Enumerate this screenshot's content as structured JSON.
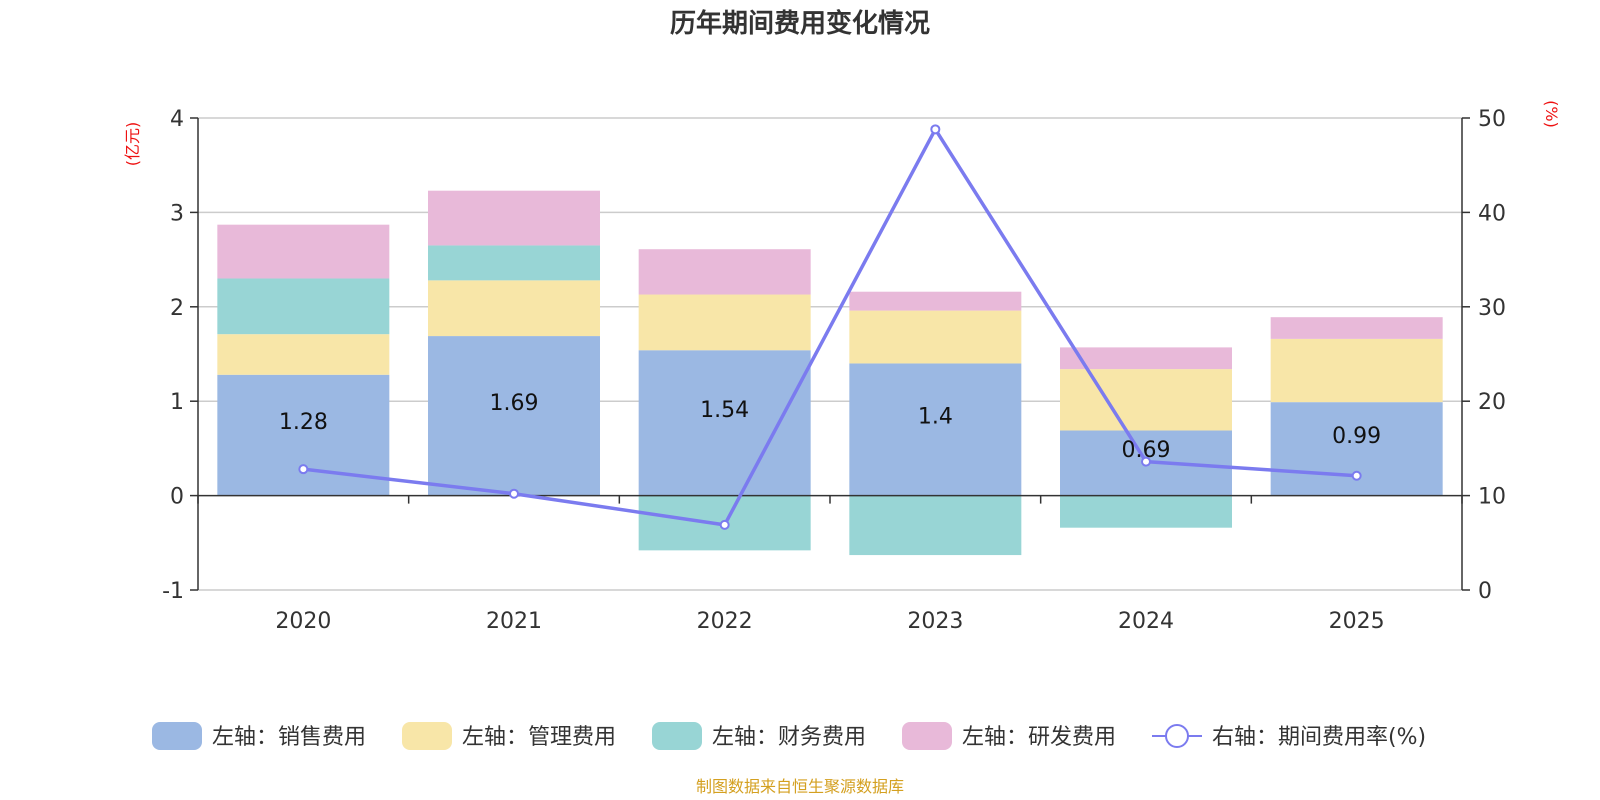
{
  "title": "历年期间费用变化情况",
  "source": "制图数据来自恒生聚源数据库",
  "colors": {
    "sales": "#9bb8e3",
    "admin": "#f8e6a8",
    "finance": "#98d5d5",
    "rnd": "#e8b9d9",
    "rate": "#7b7bef",
    "unit": "#ee1111",
    "source": "#d4a020",
    "axis": "#333333",
    "grid": "#cccccc"
  },
  "chart_data": {
    "type": "bar",
    "stacked": true,
    "categories": [
      "2020",
      "2021",
      "2022",
      "2023",
      "2024",
      "2025"
    ],
    "left_axis": {
      "unit": "(亿元)",
      "min": -1,
      "max": 4,
      "ticks": [
        "-1",
        "0",
        "1",
        "2",
        "3",
        "4"
      ]
    },
    "right_axis": {
      "unit": "(%)",
      "min": 0,
      "max": 50,
      "ticks": [
        "0",
        "10",
        "20",
        "30",
        "40",
        "50"
      ]
    },
    "series": [
      {
        "key": "sales",
        "name": "左轴：销售费用",
        "values": [
          1.28,
          1.69,
          1.54,
          1.4,
          0.69,
          0.99
        ],
        "labels": [
          "1.28",
          "1.69",
          "1.54",
          "1.4",
          "0.69",
          "0.99"
        ]
      },
      {
        "key": "admin",
        "name": "左轴：管理费用",
        "values": [
          0.43,
          0.59,
          0.59,
          0.56,
          0.65,
          0.67
        ]
      },
      {
        "key": "finance",
        "name": "左轴：财务费用",
        "values": [
          0.59,
          0.37,
          -0.58,
          -0.63,
          -0.34,
          0.0
        ]
      },
      {
        "key": "rnd",
        "name": "左轴：研发费用",
        "values": [
          0.57,
          0.58,
          0.48,
          0.2,
          0.23,
          0.23
        ]
      }
    ],
    "line": {
      "key": "rate",
      "name": "右轴：期间费用率(%)",
      "axis": "right",
      "values": [
        12.8,
        10.2,
        6.9,
        48.8,
        13.6,
        12.1
      ]
    },
    "legend_position": "bottom",
    "grid": true
  }
}
